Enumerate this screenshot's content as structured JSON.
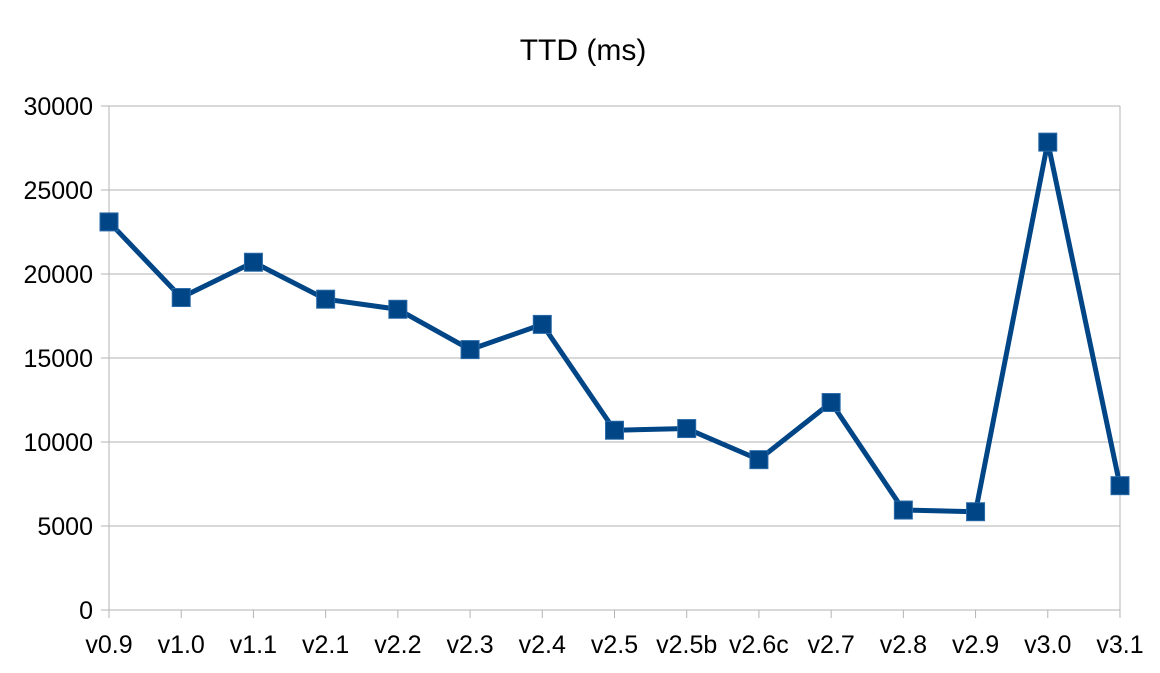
{
  "chart_data": {
    "type": "line",
    "title": "TTD (ms)",
    "xlabel": "",
    "ylabel": "",
    "ylim": [
      0,
      30000
    ],
    "yticks": [
      0,
      5000,
      10000,
      15000,
      20000,
      25000,
      30000
    ],
    "grid": true,
    "legend": "none",
    "categories": [
      "v0.9",
      "v1.0",
      "v1.1",
      "v2.1",
      "v2.2",
      "v2.3",
      "v2.4",
      "v2.5",
      "v2.5b",
      "v2.6c",
      "v2.7",
      "v2.8",
      "v2.9",
      "v3.0",
      "v3.1"
    ],
    "series": [
      {
        "color": "#004586",
        "marker": "square",
        "values": [
          23100,
          18600,
          20700,
          18500,
          17900,
          15500,
          17000,
          10700,
          10800,
          8950,
          12350,
          5950,
          5850,
          27850,
          7400
        ]
      }
    ]
  }
}
